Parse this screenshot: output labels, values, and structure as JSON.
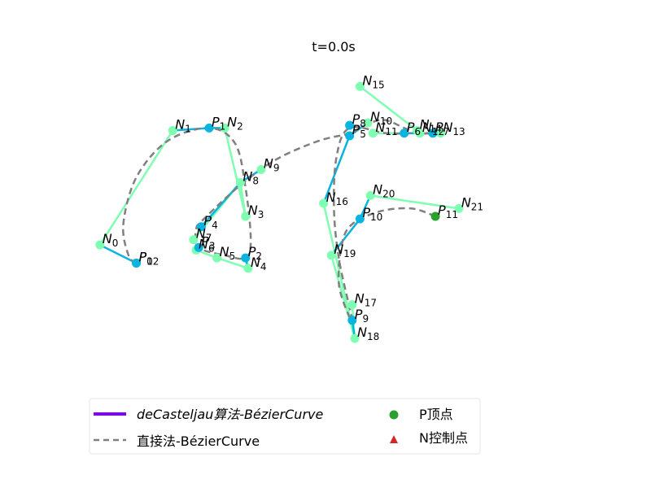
{
  "chart_data": {
    "type": "scatter",
    "title": "t=0.0s",
    "xlim": [
      0,
      9.7
    ],
    "ylim": [
      0,
      7.2
    ],
    "colors": {
      "control_line": "#7fffb2",
      "teal_line": "#0ab4e0",
      "curve": "#808080",
      "decasteljau": "#8000ff",
      "p_marker": "#2ca02c",
      "n_marker": "#d62728"
    },
    "points": {
      "N0": [
        0.2,
        2.8
      ],
      "N1": [
        1.6,
        5.0
      ],
      "N2": [
        2.6,
        5.05
      ],
      "N3": [
        3.0,
        3.35
      ],
      "N4": [
        3.05,
        2.35
      ],
      "N5": [
        2.45,
        2.55
      ],
      "N6": [
        2.05,
        2.7
      ],
      "N7": [
        2.0,
        2.9
      ],
      "N8": [
        2.9,
        4.0
      ],
      "N9": [
        3.3,
        4.25
      ],
      "N10": [
        5.35,
        5.15
      ],
      "N11": [
        5.45,
        4.95
      ],
      "N12": [
        6.35,
        4.95
      ],
      "N13": [
        6.75,
        4.95
      ],
      "N14": [
        6.3,
        5.0
      ],
      "N15": [
        5.2,
        5.85
      ],
      "N16": [
        4.5,
        3.6
      ],
      "N17": [
        5.05,
        1.65
      ],
      "N18": [
        5.1,
        1.0
      ],
      "N19": [
        4.65,
        2.6
      ],
      "N20": [
        5.4,
        3.75
      ],
      "N21": [
        7.1,
        3.5
      ],
      "P0": [
        0.9,
        2.45
      ],
      "P1": [
        2.3,
        5.05
      ],
      "P2": [
        3.0,
        2.55
      ],
      "P3": [
        2.1,
        2.75
      ],
      "P4": [
        2.15,
        3.15
      ],
      "P5": [
        5.0,
        4.9
      ],
      "P6": [
        6.05,
        4.95
      ],
      "P7": [
        6.6,
        4.95
      ],
      "P8": [
        5.0,
        5.1
      ],
      "P9": [
        5.05,
        1.35
      ],
      "P10": [
        5.2,
        3.3
      ],
      "P11": [
        6.65,
        3.35
      ],
      "P12": [
        0.9,
        2.45
      ]
    },
    "label_points": [
      {
        "base": "N",
        "sub": "0",
        "point": "N0"
      },
      {
        "base": "N",
        "sub": "1",
        "point": "N1"
      },
      {
        "base": "N",
        "sub": "2",
        "point": "N2"
      },
      {
        "base": "N",
        "sub": "3",
        "point": "N3"
      },
      {
        "base": "N",
        "sub": "4",
        "point": "N4"
      },
      {
        "base": "N",
        "sub": "5",
        "point": "N5"
      },
      {
        "base": "N",
        "sub": "6",
        "point": "N6"
      },
      {
        "base": "N",
        "sub": "7",
        "point": "N7"
      },
      {
        "base": "N",
        "sub": "8",
        "point": "N8"
      },
      {
        "base": "N",
        "sub": "9",
        "point": "N9"
      },
      {
        "base": "N",
        "sub": "10",
        "point": "N10"
      },
      {
        "base": "N",
        "sub": "11",
        "point": "N11"
      },
      {
        "base": "N",
        "sub": "12",
        "point": "N12"
      },
      {
        "base": "N",
        "sub": "13",
        "point": "N13"
      },
      {
        "base": "N",
        "sub": "14",
        "point": "N14"
      },
      {
        "base": "N",
        "sub": "15",
        "point": "N15"
      },
      {
        "base": "N",
        "sub": "16",
        "point": "N16"
      },
      {
        "base": "N",
        "sub": "17",
        "point": "N17"
      },
      {
        "base": "N",
        "sub": "18",
        "point": "N18"
      },
      {
        "base": "N",
        "sub": "19",
        "point": "N19"
      },
      {
        "base": "N",
        "sub": "20",
        "point": "N20"
      },
      {
        "base": "N",
        "sub": "21",
        "point": "N21"
      },
      {
        "base": "P",
        "sub": "0",
        "point": "P0"
      },
      {
        "base": "P",
        "sub": "1",
        "point": "P1"
      },
      {
        "base": "P",
        "sub": "2",
        "point": "P2"
      },
      {
        "base": "P",
        "sub": "3",
        "point": "P3"
      },
      {
        "base": "P",
        "sub": "4",
        "point": "P4"
      },
      {
        "base": "P",
        "sub": "5",
        "point": "P5"
      },
      {
        "base": "P",
        "sub": "6",
        "point": "P6"
      },
      {
        "base": "P",
        "sub": "7",
        "point": "P7"
      },
      {
        "base": "P",
        "sub": "8",
        "point": "P8"
      },
      {
        "base": "P",
        "sub": "9",
        "point": "P9"
      },
      {
        "base": "P",
        "sub": "10",
        "point": "P10"
      },
      {
        "base": "P",
        "sub": "11",
        "point": "P11"
      },
      {
        "base": "P",
        "sub": "12",
        "point": "P12"
      }
    ],
    "control_segments": [
      [
        "N0",
        "N1"
      ],
      [
        "N2",
        "N3"
      ],
      [
        "N3",
        "N8"
      ],
      [
        "N4",
        "N5"
      ],
      [
        "N5",
        "N6"
      ],
      [
        "N7",
        "N8"
      ],
      [
        "N15",
        "N14"
      ],
      [
        "N11",
        "N13"
      ],
      [
        "N16",
        "N18"
      ],
      [
        "N19",
        "N18"
      ],
      [
        "N20",
        "N21"
      ],
      [
        "N17",
        "N18"
      ]
    ],
    "teal_segments": [
      [
        "N0",
        "P0"
      ],
      [
        "N1",
        "P1"
      ],
      [
        "P1",
        "N2"
      ],
      [
        "N4",
        "P2"
      ],
      [
        "N6",
        "P3"
      ],
      [
        "P4",
        "N8"
      ],
      [
        "N8",
        "N9"
      ],
      [
        "P5",
        "N10"
      ],
      [
        "N16",
        "P5"
      ],
      [
        "P6",
        "N12"
      ],
      [
        "P7",
        "N13"
      ],
      [
        "P9",
        "N18"
      ],
      [
        "N20",
        "P10"
      ],
      [
        "P10",
        "N19"
      ]
    ],
    "curve_points": [
      [
        0.9,
        2.45
      ],
      [
        0.75,
        2.6
      ],
      [
        0.65,
        3.2
      ],
      [
        0.9,
        4.1
      ],
      [
        1.5,
        4.8
      ],
      [
        2.3,
        5.05
      ],
      [
        2.8,
        4.75
      ],
      [
        3.0,
        3.9
      ],
      [
        3.1,
        2.9
      ],
      [
        3.0,
        2.55
      ],
      [
        2.6,
        2.6
      ],
      [
        2.1,
        2.75
      ],
      [
        2.05,
        3.1
      ],
      [
        2.2,
        3.3
      ],
      [
        2.9,
        3.95
      ],
      [
        3.6,
        4.45
      ],
      [
        4.4,
        4.8
      ],
      [
        5.0,
        4.95
      ],
      [
        5.4,
        5.15
      ],
      [
        5.7,
        5.2
      ],
      [
        6.05,
        5.05
      ],
      [
        6.35,
        4.95
      ],
      [
        6.6,
        4.95
      ],
      [
        6.3,
        4.95
      ],
      [
        5.7,
        4.95
      ],
      [
        5.0,
        5.05
      ],
      [
        4.75,
        4.5
      ],
      [
        4.7,
        3.5
      ],
      [
        4.8,
        2.5
      ],
      [
        5.05,
        1.35
      ],
      [
        4.8,
        2.0
      ],
      [
        4.85,
        2.8
      ],
      [
        5.05,
        3.2
      ],
      [
        5.6,
        3.45
      ],
      [
        6.2,
        3.5
      ],
      [
        6.65,
        3.35
      ]
    ],
    "legend": {
      "items": [
        {
          "label": "deCasteljau算法-BézierCurve",
          "kind": "solid-line"
        },
        {
          "label": "直接法-BézierCurve",
          "kind": "dashed-line"
        },
        {
          "label": "P顶点",
          "kind": "dot"
        },
        {
          "label": "N控制点",
          "kind": "triangle"
        }
      ],
      "placement": "bottom"
    }
  }
}
